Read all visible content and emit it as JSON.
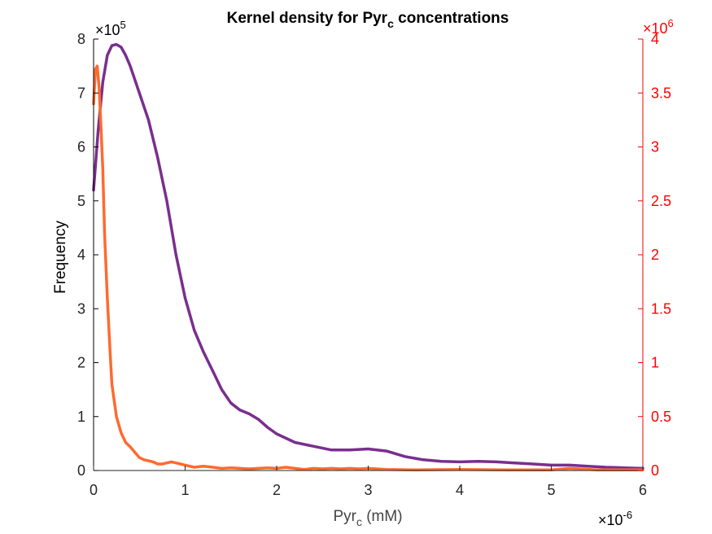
{
  "chart_data": {
    "type": "line",
    "title": {
      "main": "Kernel density for Pyr",
      "sub": "c",
      "rest": " concentrations"
    },
    "xlabel": {
      "main": "Pyr",
      "sub": "c",
      "rest": " (mM)"
    },
    "ylabel": "Frequency",
    "x_multiplier": {
      "base": "×10",
      "exp": "-6"
    },
    "y_multiplier_left": {
      "base": "×10",
      "exp": "5"
    },
    "y_multiplier_right": {
      "base": "×10",
      "exp": "6"
    },
    "xlim": [
      0,
      6e-06
    ],
    "ylim_left": [
      0,
      800000
    ],
    "ylim_right": [
      0,
      4000000
    ],
    "x_ticks": [
      0,
      1,
      2,
      3,
      4,
      5,
      6
    ],
    "y_ticks_left": [
      0,
      1,
      2,
      3,
      4,
      5,
      6,
      7,
      8
    ],
    "y_ticks_right": [
      "0",
      "0.5",
      "1",
      "1.5",
      "2",
      "2.5",
      "3",
      "3.5",
      "4"
    ],
    "grid": false,
    "colors": {
      "left_axis": "#000000",
      "right_axis": "#ff0000",
      "series_left": "#7a2e8e",
      "series_right": "#ff6a2e"
    },
    "series": [
      {
        "axis": "left",
        "color": "#7a2e8e",
        "x": [
          0,
          0.05,
          0.1,
          0.15,
          0.2,
          0.25,
          0.3,
          0.35,
          0.4,
          0.5,
          0.6,
          0.7,
          0.8,
          0.9,
          1.0,
          1.1,
          1.2,
          1.3,
          1.4,
          1.5,
          1.6,
          1.7,
          1.8,
          1.9,
          2.0,
          2.2,
          2.4,
          2.6,
          2.8,
          3.0,
          3.2,
          3.4,
          3.6,
          3.8,
          4.0,
          4.2,
          4.4,
          4.6,
          4.8,
          5.0,
          5.2,
          5.4,
          5.6,
          5.8,
          6.0
        ],
        "y": [
          5.2,
          6.3,
          7.2,
          7.7,
          7.88,
          7.9,
          7.85,
          7.7,
          7.5,
          7.0,
          6.5,
          5.8,
          5.0,
          4.0,
          3.2,
          2.6,
          2.2,
          1.85,
          1.5,
          1.25,
          1.12,
          1.05,
          0.95,
          0.8,
          0.68,
          0.52,
          0.45,
          0.38,
          0.38,
          0.4,
          0.36,
          0.26,
          0.2,
          0.17,
          0.16,
          0.17,
          0.16,
          0.14,
          0.12,
          0.1,
          0.1,
          0.08,
          0.06,
          0.05,
          0.04
        ]
      },
      {
        "axis": "right",
        "color": "#ff6a2e",
        "x": [
          0,
          0.02,
          0.04,
          0.06,
          0.08,
          0.1,
          0.12,
          0.15,
          0.18,
          0.2,
          0.25,
          0.3,
          0.35,
          0.4,
          0.45,
          0.5,
          0.55,
          0.6,
          0.65,
          0.7,
          0.75,
          0.8,
          0.85,
          0.9,
          0.95,
          1.0,
          1.05,
          1.1,
          1.2,
          1.3,
          1.4,
          1.5,
          1.6,
          1.7,
          1.8,
          1.9,
          2.0,
          2.1,
          2.2,
          2.3,
          2.4,
          2.5,
          2.6,
          2.7,
          2.8,
          2.9,
          3.0,
          3.2,
          3.5,
          4.0,
          4.5,
          5.0,
          5.2,
          5.5,
          6.0
        ],
        "y": [
          3.4,
          3.72,
          3.75,
          3.55,
          3.2,
          2.8,
          2.2,
          1.6,
          1.1,
          0.8,
          0.5,
          0.35,
          0.26,
          0.22,
          0.17,
          0.12,
          0.1,
          0.09,
          0.08,
          0.06,
          0.06,
          0.07,
          0.08,
          0.07,
          0.06,
          0.05,
          0.04,
          0.03,
          0.04,
          0.03,
          0.02,
          0.025,
          0.02,
          0.015,
          0.02,
          0.025,
          0.02,
          0.03,
          0.02,
          0.01,
          0.02,
          0.015,
          0.02,
          0.015,
          0.02,
          0.015,
          0.02,
          0.01,
          0.005,
          0.01,
          0.005,
          0.005,
          0.02,
          0.005,
          0.005
        ]
      }
    ]
  }
}
